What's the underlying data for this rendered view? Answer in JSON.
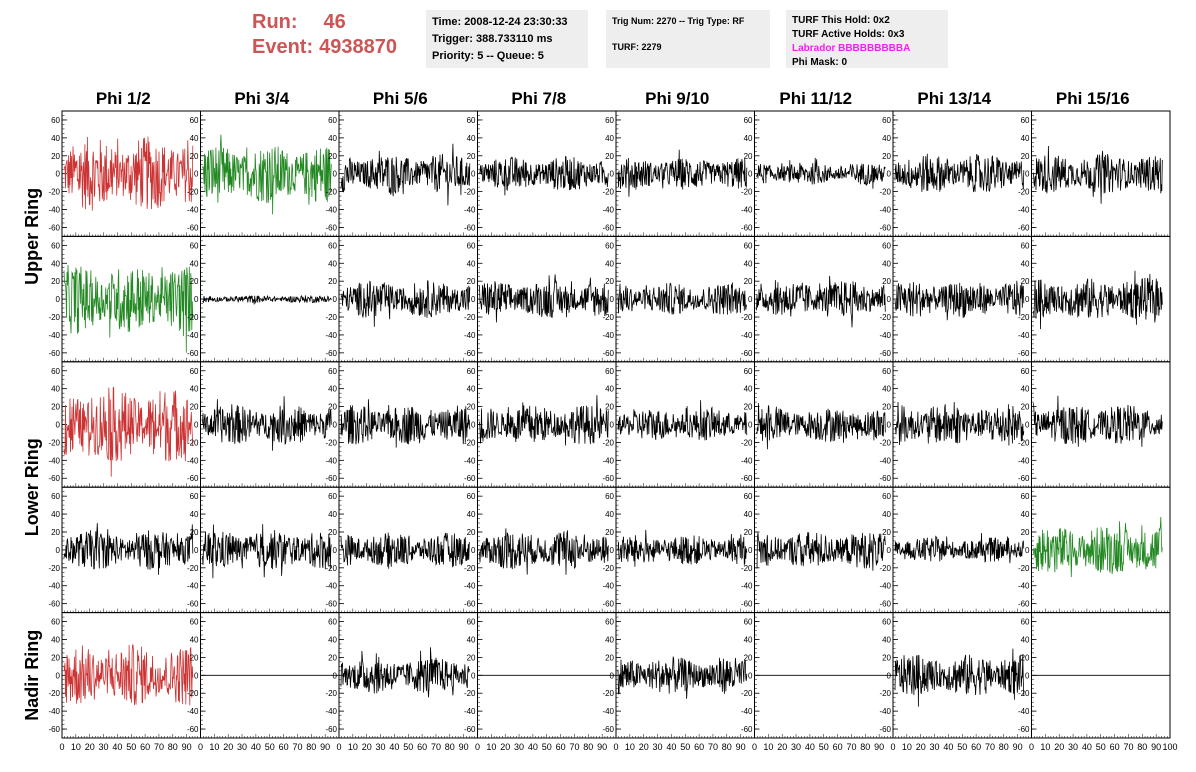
{
  "header": {
    "run_label": "Run:",
    "run_value": "46",
    "event_label": "Event:",
    "event_value": "4938870",
    "time": "Time: 2008-12-24 23:30:33",
    "trigger": "Trigger: 388.733110 ms",
    "priority": "Priority: 5 -- Queue: 5",
    "trig_num": "Trig Num: 2270 -- Trig Type: RF",
    "turf": "TURF: 2279",
    "turf_this_hold": "TURF This Hold: 0x2",
    "turf_active_holds": "TURF Active Holds: 0x3",
    "labrador": "Labrador BBBBBBBBBA",
    "phi_mask": "Phi Mask: 0"
  },
  "colors": {
    "red": "#cc3333",
    "green": "#228822",
    "black": "#000000",
    "magenta": "#ee22ee",
    "run_text": "#cc5555"
  },
  "chart_data": {
    "type": "line",
    "columns": [
      "Phi 1/2",
      "Phi 3/4",
      "Phi 5/6",
      "Phi 7/8",
      "Phi 9/10",
      "Phi 11/12",
      "Phi 13/14",
      "Phi 15/16"
    ],
    "rows": [
      "Upper Ring",
      "Upper Ring",
      "Lower Ring",
      "Lower Ring",
      "Nadir Ring"
    ],
    "row_labels": [
      {
        "text": "Upper Ring",
        "rows": [
          0,
          1
        ]
      },
      {
        "text": "Lower Ring",
        "rows": [
          2,
          3
        ]
      },
      {
        "text": "Nadir Ring",
        "rows": [
          4
        ]
      }
    ],
    "ylim": [
      -70,
      70
    ],
    "yticks": [
      -60,
      -40,
      -20,
      0,
      20,
      40,
      60
    ],
    "xlim": [
      0,
      100
    ],
    "xticks": [
      0,
      10,
      20,
      30,
      40,
      50,
      60,
      70,
      80,
      90,
      100
    ],
    "x_ticklabels": [
      "0",
      "10",
      "20",
      "30",
      "40",
      "50",
      "60",
      "70",
      "80",
      "90",
      "100"
    ],
    "grid": false,
    "trace_colors": [
      [
        "red",
        "green",
        "black",
        "black",
        "black",
        "black",
        "black",
        "black"
      ],
      [
        "green",
        "black",
        "black",
        "black",
        "black",
        "black",
        "black",
        "black"
      ],
      [
        "red",
        "black",
        "black",
        "black",
        "black",
        "black",
        "black",
        "black"
      ],
      [
        "black",
        "black",
        "black",
        "black",
        "black",
        "black",
        "black",
        "green"
      ],
      [
        "red",
        "black",
        "black",
        "black",
        "black",
        "black",
        "black",
        "black"
      ]
    ],
    "trace_amplitude": [
      [
        30,
        24,
        16,
        14,
        13,
        9,
        16,
        16
      ],
      [
        28,
        3,
        15,
        15,
        13,
        15,
        15,
        17
      ],
      [
        30,
        16,
        16,
        16,
        13,
        14,
        17,
        16
      ],
      [
        16,
        16,
        14,
        16,
        12,
        15,
        10,
        20
      ],
      [
        25,
        0,
        15,
        0,
        15,
        0,
        17,
        0
      ]
    ]
  }
}
